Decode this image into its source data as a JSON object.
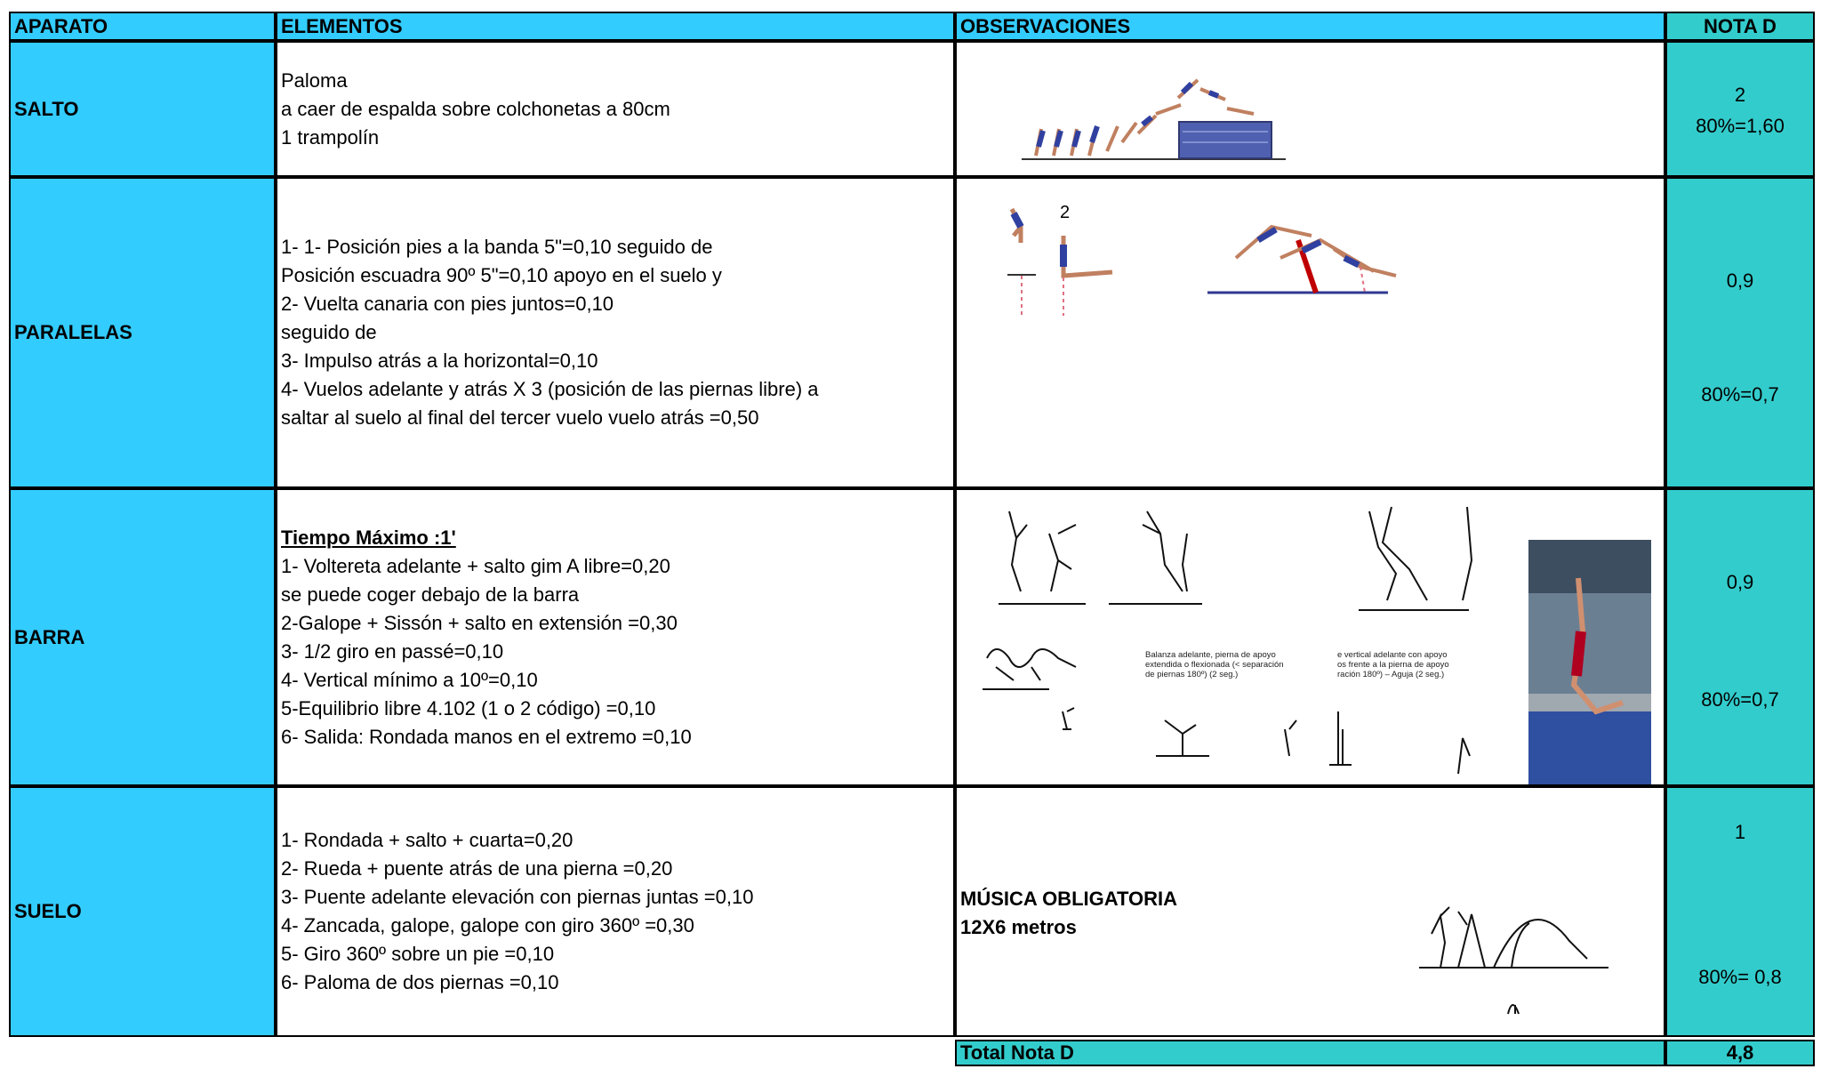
{
  "header": {
    "aparato": "APARATO",
    "elementos": "ELEMENTOS",
    "observaciones": "OBSERVACIONES",
    "nota": "NOTA D"
  },
  "rows": [
    {
      "aparato": "SALTO",
      "elementos": [
        "Paloma",
        "a caer de espalda sobre colchonetas a  80cm",
        "1 trampolín"
      ],
      "nota": [
        "2",
        "80%=1,60"
      ]
    },
    {
      "aparato": "PARALELAS",
      "elementos": [
        "1- 1- Posición pies a la banda 5\"=0,10 seguido de",
        "Posición escuadra 90º 5\"=0,10 apoyo en el suelo y",
        "2- Vuelta canaria con pies juntos=0,10",
        "seguido de",
        "3- Impulso atrás a la horizontal=0,10",
        "4- Vuelos adelante y atrás X 3 (posición de las piernas libre) a",
        "saltar al suelo al final del tercer vuelo vuelo atrás =0,50"
      ],
      "nota": [
        "0,9",
        "80%=0,7"
      ]
    },
    {
      "aparato": "BARRA",
      "elementos_title": "Tiempo Máximo :1'",
      "elementos": [
        "1- Voltereta adelante + salto gim A libre=0,20",
        "se puede coger debajo de la barra",
        "2-Galope + Sissón + salto en extensión =0,30",
        "3- 1/2 giro en passé=0,10",
        "4- Vertical mínimo a  10º=0,10",
        "5-Equilibrio libre 4.102 (1 o 2 código) =0,10",
        "6- Salida: Rondada manos en el extremo =0,10"
      ],
      "captions": [
        [
          "Balanza adelante, pierna de apoyo",
          "extendida o flexionada (< separación",
          "de piernas 180º) (2 seg.)"
        ],
        [
          "e vertical adelante con apoyo",
          "os frente a la pierna de apoyo",
          "ración 180º) – Aguja (2 seg.)"
        ]
      ],
      "nota": [
        "0,9",
        "80%=0,7"
      ]
    },
    {
      "aparato": "SUELO",
      "elementos": [
        "1- Rondada + salto + cuarta=0,20",
        "2- Rueda + puente atrás de una pierna =0,20",
        "3- Puente adelante elevación con piernas juntas =0,10",
        "4- Zancada, galope, galope con giro  360º =0,30",
        "5- Giro 360º sobre un pie =0,10",
        "6- Paloma de dos piernas =0,10"
      ],
      "observaciones": [
        "MÚSICA OBLIGATORIA",
        "12X6 metros"
      ],
      "nota": [
        "1",
        "80%= 0,8"
      ]
    }
  ],
  "total": {
    "label": "Total Nota D",
    "value": "4,8"
  }
}
